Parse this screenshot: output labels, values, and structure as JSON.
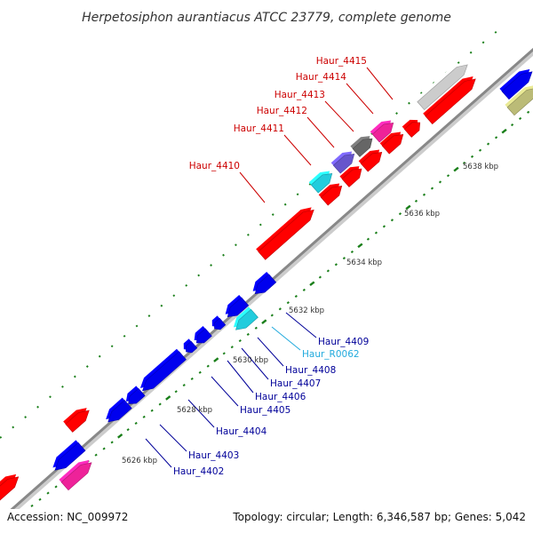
{
  "title": "Herpetosiphon aurantiacus ATCC 23779, complete genome",
  "footer": {
    "accession": "Accession: NC_009972",
    "summary": "Topology: circular; Length: 6,346,587 bp; Genes: 5,042"
  },
  "colors": {
    "axis": "#888888",
    "red_gene": "#ff0000",
    "blue_gene": "#0000ee",
    "cyan_gene": "#22ccdd",
    "magenta_gene": "#ee2299",
    "purple_gene": "#6655cc",
    "gray_gene": "#666666",
    "lightgray_gene": "#cccccc",
    "olive_gene": "#bbbb77",
    "tick": "#1a7f1a",
    "label_red": "#cc0000",
    "label_blue": "#000099",
    "label_cyan": "#22aadd"
  },
  "ticks": [
    {
      "label": "5626 kbp"
    },
    {
      "label": "5628 kbp"
    },
    {
      "label": "5630 kbp"
    },
    {
      "label": "5632 kbp"
    },
    {
      "label": "5634 kbp"
    },
    {
      "label": "5636 kbp"
    },
    {
      "label": "5638 kbp"
    }
  ],
  "gene_labels": [
    {
      "id": "Haur_4410",
      "color": "label_red"
    },
    {
      "id": "Haur_4411",
      "color": "label_red"
    },
    {
      "id": "Haur_4412",
      "color": "label_red"
    },
    {
      "id": "Haur_4413",
      "color": "label_red"
    },
    {
      "id": "Haur_4414",
      "color": "label_red"
    },
    {
      "id": "Haur_4415",
      "color": "label_red"
    },
    {
      "id": "Haur_4409",
      "color": "label_blue"
    },
    {
      "id": "Haur_R0062",
      "color": "label_cyan"
    },
    {
      "id": "Haur_4408",
      "color": "label_blue"
    },
    {
      "id": "Haur_4407",
      "color": "label_blue"
    },
    {
      "id": "Haur_4406",
      "color": "label_blue"
    },
    {
      "id": "Haur_4405",
      "color": "label_blue"
    },
    {
      "id": "Haur_4404",
      "color": "label_blue"
    },
    {
      "id": "Haur_4403",
      "color": "label_blue"
    },
    {
      "id": "Haur_4402",
      "color": "label_blue"
    }
  ]
}
